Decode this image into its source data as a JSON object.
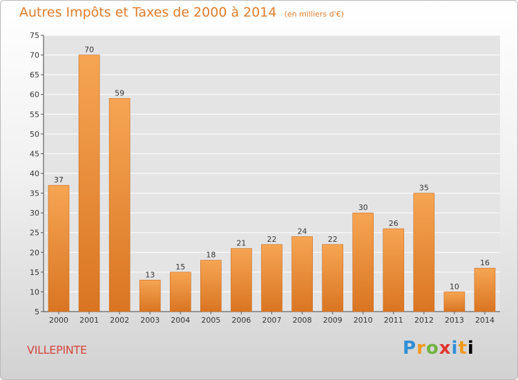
{
  "title": "Autres Impôts et Taxes de 2000 à 2014",
  "subtitle": "(en milliers d'€)",
  "location": "VILLEPINTE",
  "logo": {
    "letters": [
      "P",
      "r",
      "o",
      "x",
      "i",
      "t",
      "i"
    ]
  },
  "colors": {
    "title": "#e07b28",
    "location": "#d6453d",
    "bar_light": "#f6a553",
    "bar_dark": "#d97522",
    "grid": "#ffffff"
  },
  "chart_data": {
    "type": "bar",
    "title": "Autres Impôts et Taxes de 2000 à 2014",
    "subtitle": "(en milliers d'€)",
    "categories": [
      "2000",
      "2001",
      "2002",
      "2003",
      "2004",
      "2005",
      "2006",
      "2007",
      "2008",
      "2009",
      "2010",
      "2011",
      "2012",
      "2013",
      "2014"
    ],
    "values": [
      37,
      70,
      59,
      13,
      15,
      18,
      21,
      22,
      24,
      22,
      30,
      26,
      35,
      10,
      16
    ],
    "ylim": [
      5,
      75
    ],
    "yticks": [
      5,
      10,
      15,
      20,
      25,
      30,
      35,
      40,
      45,
      50,
      55,
      60,
      65,
      70,
      75
    ],
    "grid": true,
    "data_labels": true
  }
}
